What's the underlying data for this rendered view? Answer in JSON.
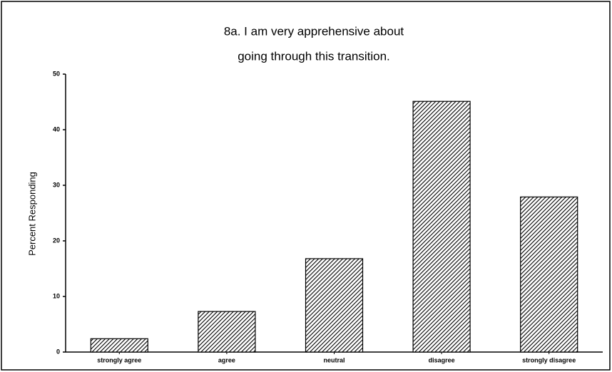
{
  "chart_data": {
    "type": "bar",
    "title": [
      "8a. I am very apprehensive about",
      "going through this transition."
    ],
    "y_label": "Percent Responding",
    "categories": [
      "strongly agree",
      "agree",
      "neutral",
      "disagree",
      "strongly disagree"
    ],
    "values": [
      2.4,
      7.3,
      16.8,
      45.1,
      27.9
    ],
    "color": "#000000",
    "ylim": [
      0,
      50
    ],
    "yticks": [
      0,
      10,
      20,
      30,
      40,
      50
    ],
    "grid": false
  }
}
